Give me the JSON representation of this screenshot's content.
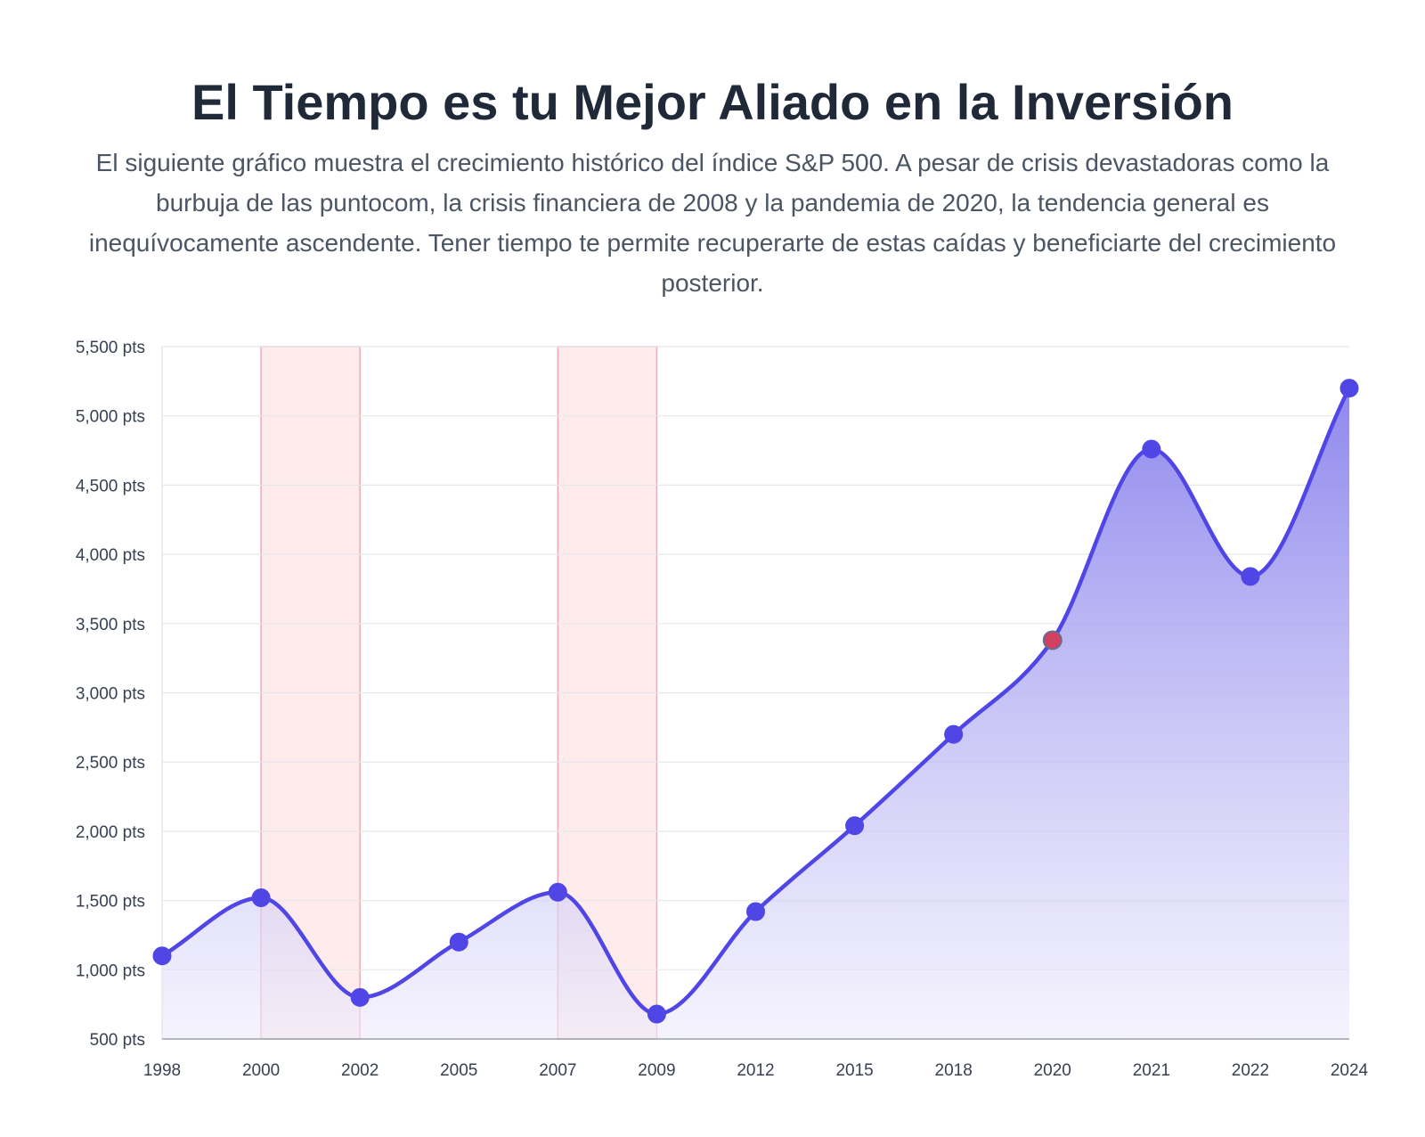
{
  "header": {
    "title": "El Tiempo es tu Mejor Aliado en la Inversión",
    "subtitle": "El siguiente gráfico muestra el crecimiento histórico del índice S&P 500. A pesar de crisis devastadoras como la burbuja de las puntocom, la crisis financiera de 2008 y la pandemia de 2020, la tendencia general es inequívocamente ascendente. Tener tiempo te permite recuperarte de estas caídas y beneficiarte del crecimiento posterior."
  },
  "chart_data": {
    "type": "area",
    "title": "",
    "xlabel": "",
    "ylabel": "",
    "categories": [
      "1998",
      "2000",
      "2002",
      "2005",
      "2007",
      "2009",
      "2012",
      "2015",
      "2018",
      "2020",
      "2021",
      "2022",
      "2024"
    ],
    "series": [
      {
        "name": "S&P 500",
        "values": [
          1100,
          1520,
          800,
          1200,
          1560,
          680,
          1420,
          2040,
          2700,
          3380,
          4760,
          3840,
          5200
        ]
      }
    ],
    "highlight_point": {
      "category": "2020",
      "color": "#d1405f"
    },
    "ylim": [
      500,
      5500
    ],
    "yticks": [
      500,
      1000,
      1500,
      2000,
      2500,
      3000,
      3500,
      4000,
      4500,
      5000,
      5500
    ],
    "ytick_labels": [
      "500 pts",
      "1,000 pts",
      "1,500 pts",
      "2,000 pts",
      "2,500 pts",
      "3,000 pts",
      "3,500 pts",
      "4,000 pts",
      "4,500 pts",
      "5,000 pts",
      "5,500 pts"
    ],
    "crisis_bands": [
      {
        "from": "2000",
        "to": "2002"
      },
      {
        "from": "2007",
        "to": "2009"
      }
    ],
    "grid": true,
    "colors": {
      "line": "#4f46e5",
      "point": "#4f46e5",
      "fill_top": "#7b73ea",
      "fill_bottom": "#eeecfc",
      "band_fill": "#fde4e6",
      "band_stroke": "#f4a7b4",
      "grid": "#e5e7eb",
      "axis": "#9ca3af"
    }
  }
}
